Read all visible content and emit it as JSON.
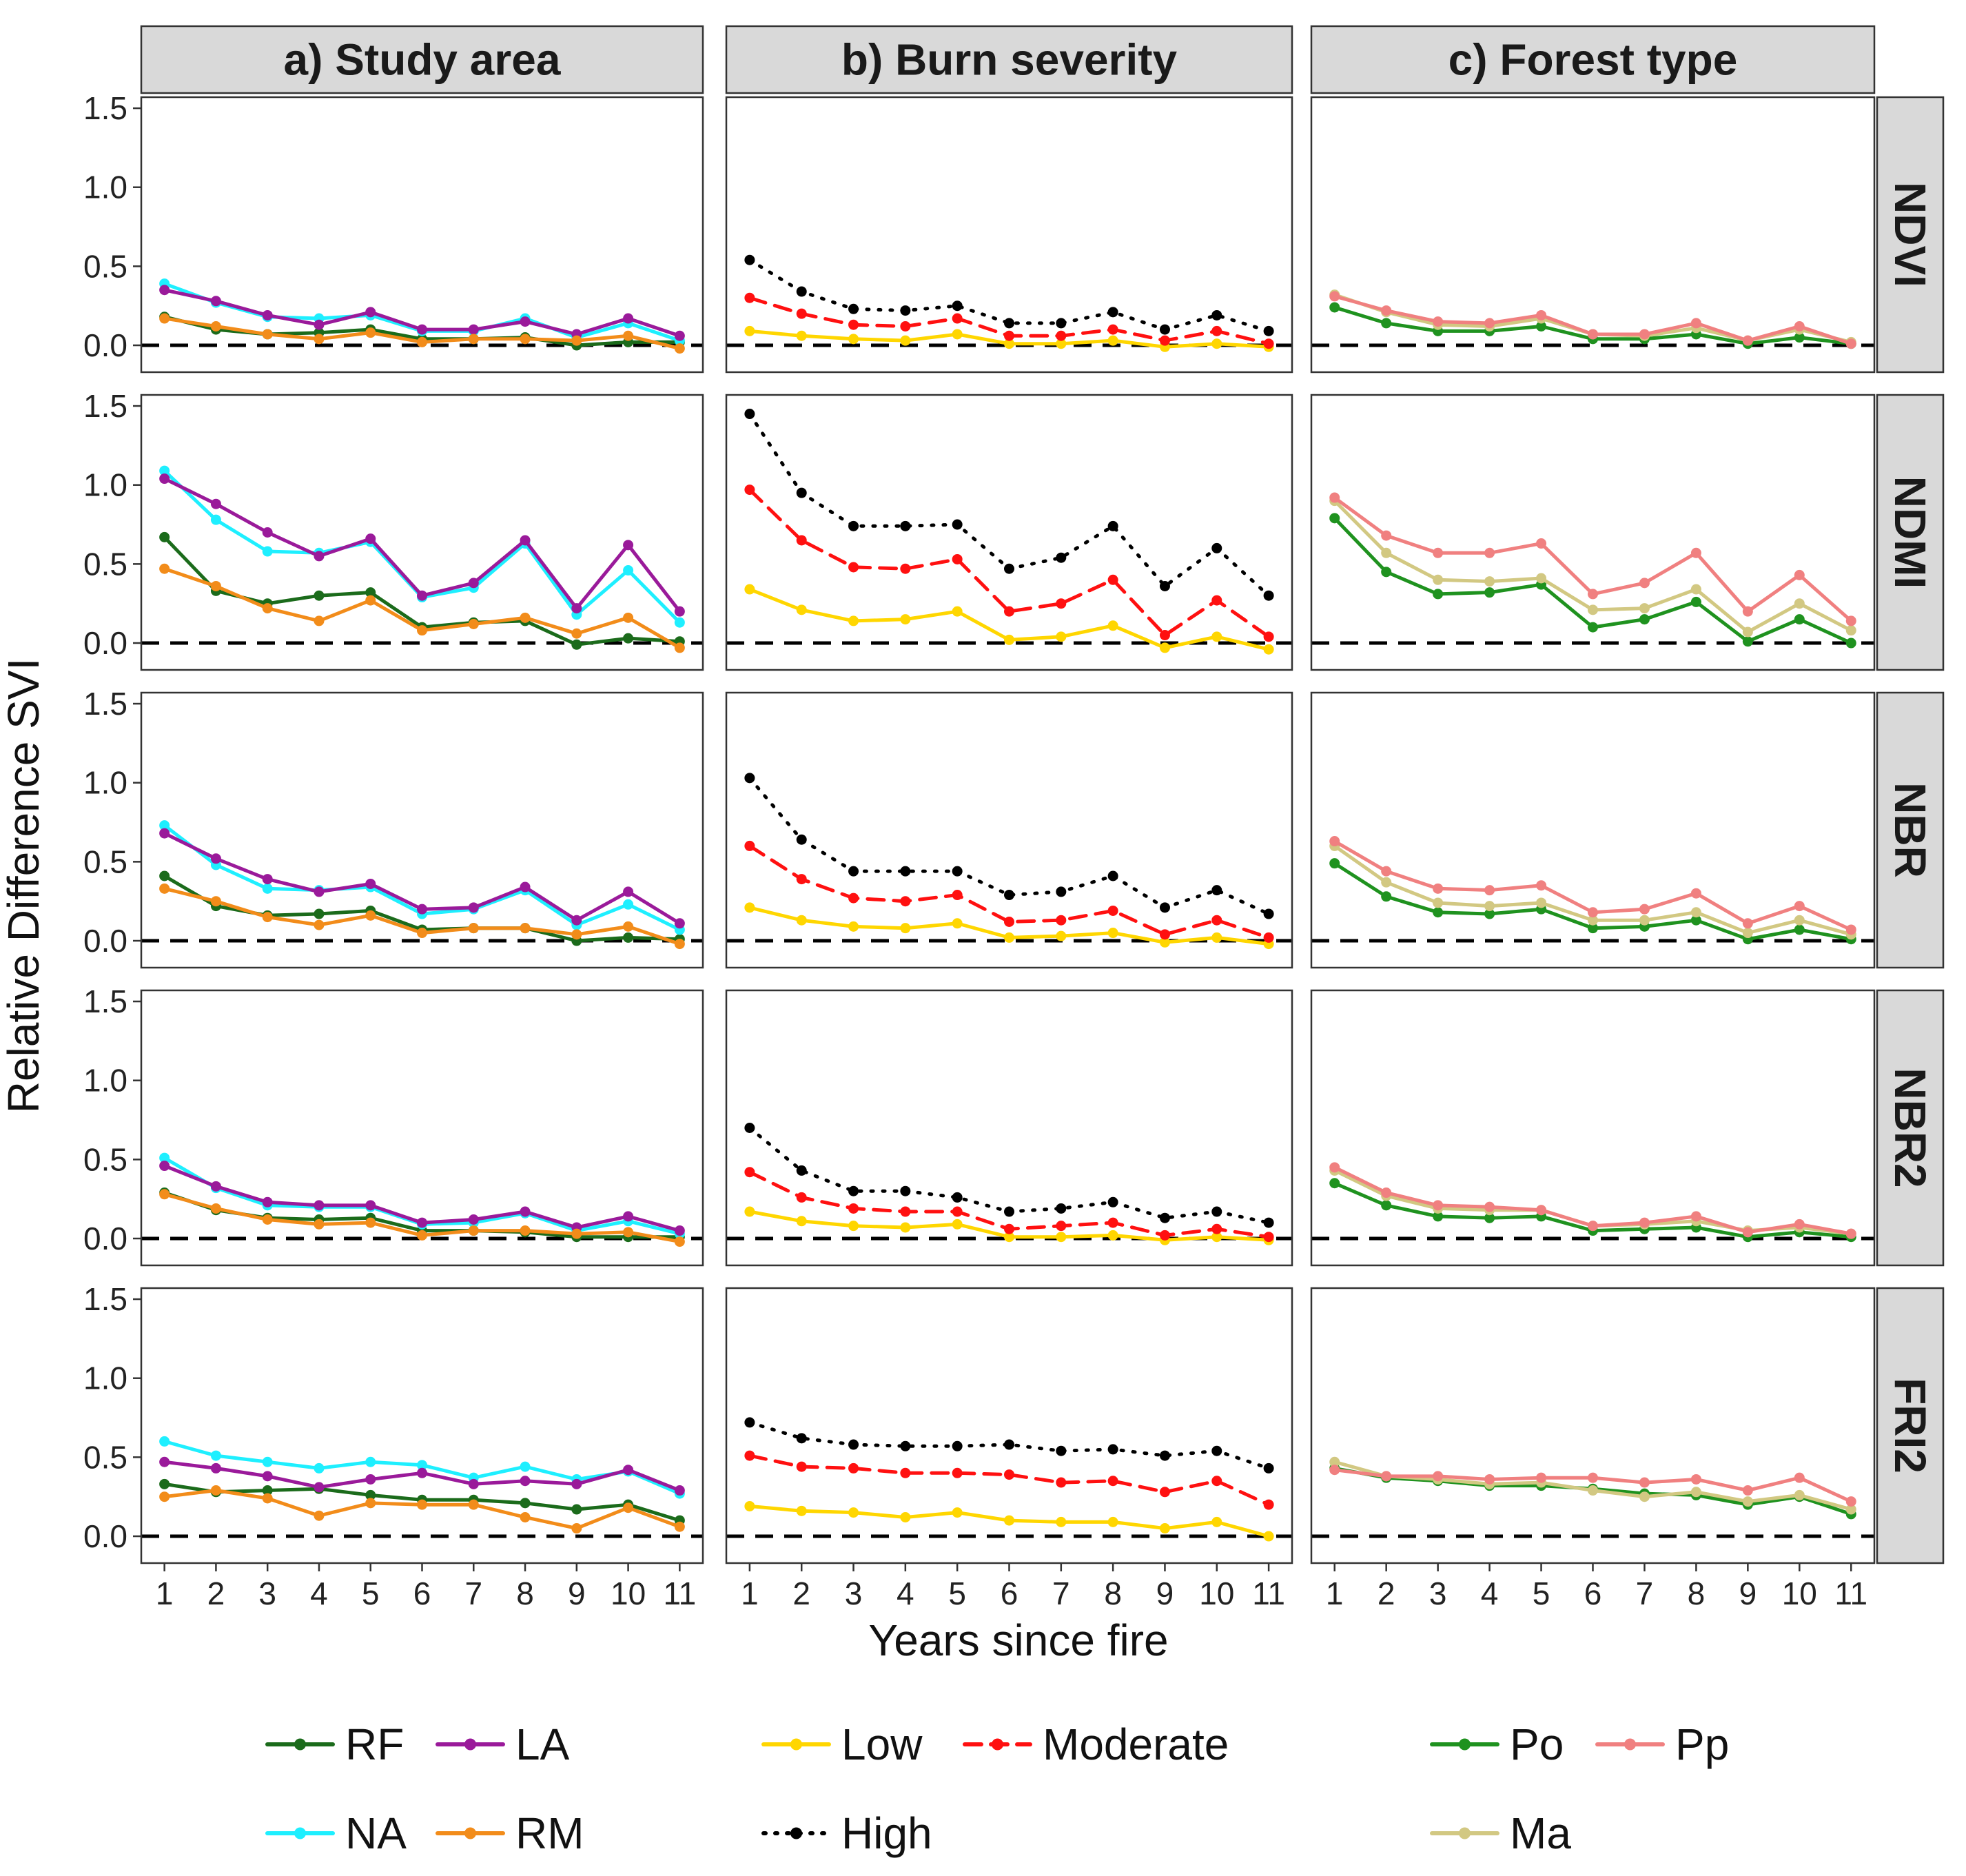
{
  "chart_data": {
    "type": "line",
    "title": "",
    "xlabel": "Years since fire",
    "ylabel": "Relative Difference SVI",
    "x": [
      1,
      2,
      3,
      4,
      5,
      6,
      7,
      8,
      9,
      10,
      11
    ],
    "x_tick_labels": [
      "1",
      "2",
      "3",
      "4",
      "5",
      "6",
      "7",
      "8",
      "9",
      "10",
      "11"
    ],
    "y_tick_labels": [
      "0.0",
      "0.5",
      "1.0",
      "1.5"
    ],
    "ylim": [
      -0.17,
      1.57
    ],
    "xlim": [
      0.55,
      11.45
    ],
    "reference_line": 0,
    "columns": [
      {
        "key": "study",
        "label": "a) Study area"
      },
      {
        "key": "severity",
        "label": "b) Burn severity"
      },
      {
        "key": "forest",
        "label": "c) Forest type"
      }
    ],
    "rows": [
      "NDVI",
      "NDMI",
      "NBR",
      "NBR2",
      "FRI2"
    ],
    "series_styles": {
      "RF": {
        "color": "#1B6B1B",
        "dash": "solid"
      },
      "LA": {
        "color": "#9A1A9A",
        "dash": "solid"
      },
      "NA": {
        "color": "#1EEFFF",
        "dash": "solid"
      },
      "RM": {
        "color": "#F28C1A",
        "dash": "solid"
      },
      "Low": {
        "color": "#FFD600",
        "dash": "solid"
      },
      "Moderate": {
        "color": "#FF1010",
        "dash": "dashed"
      },
      "High": {
        "color": "#000000",
        "dash": "dotted"
      },
      "Po": {
        "color": "#1F921F",
        "dash": "solid"
      },
      "Pp": {
        "color": "#F08080",
        "dash": "solid"
      },
      "Ma": {
        "color": "#D2C882",
        "dash": "solid"
      }
    },
    "panels": {
      "NDVI": {
        "study": {
          "RF": [
            0.18,
            0.1,
            0.07,
            0.08,
            0.1,
            0.04,
            0.04,
            0.05,
            0.0,
            0.02,
            0.02
          ],
          "NA": [
            0.39,
            0.27,
            0.18,
            0.17,
            0.19,
            0.09,
            0.09,
            0.17,
            0.05,
            0.14,
            0.03
          ],
          "LA": [
            0.35,
            0.28,
            0.19,
            0.13,
            0.21,
            0.1,
            0.1,
            0.15,
            0.07,
            0.17,
            0.06
          ],
          "RM": [
            0.17,
            0.12,
            0.07,
            0.04,
            0.08,
            0.02,
            0.04,
            0.04,
            0.03,
            0.06,
            -0.02
          ]
        },
        "severity": {
          "Low": [
            0.09,
            0.06,
            0.04,
            0.03,
            0.07,
            0.01,
            0.01,
            0.03,
            -0.01,
            0.01,
            -0.01
          ],
          "Moderate": [
            0.3,
            0.2,
            0.13,
            0.12,
            0.17,
            0.06,
            0.06,
            0.1,
            0.03,
            0.09,
            0.01
          ],
          "High": [
            0.54,
            0.34,
            0.23,
            0.22,
            0.25,
            0.14,
            0.14,
            0.21,
            0.1,
            0.19,
            0.09
          ]
        },
        "forest": {
          "Po": [
            0.24,
            0.14,
            0.09,
            0.09,
            0.12,
            0.04,
            0.04,
            0.07,
            0.01,
            0.05,
            0.01
          ],
          "Ma": [
            0.32,
            0.21,
            0.13,
            0.12,
            0.17,
            0.07,
            0.06,
            0.11,
            0.03,
            0.1,
            0.02
          ],
          "Pp": [
            0.31,
            0.22,
            0.15,
            0.14,
            0.19,
            0.07,
            0.07,
            0.14,
            0.03,
            0.12,
            0.01
          ]
        }
      },
      "NDMI": {
        "study": {
          "RF": [
            0.67,
            0.33,
            0.25,
            0.3,
            0.32,
            0.1,
            0.13,
            0.14,
            -0.01,
            0.03,
            0.01
          ],
          "NA": [
            1.09,
            0.78,
            0.58,
            0.57,
            0.64,
            0.29,
            0.35,
            0.63,
            0.18,
            0.46,
            0.13
          ],
          "LA": [
            1.04,
            0.88,
            0.7,
            0.55,
            0.66,
            0.3,
            0.38,
            0.65,
            0.22,
            0.62,
            0.2
          ],
          "RM": [
            0.47,
            0.36,
            0.22,
            0.14,
            0.27,
            0.08,
            0.12,
            0.16,
            0.06,
            0.16,
            -0.03
          ]
        },
        "severity": {
          "Low": [
            0.34,
            0.21,
            0.14,
            0.15,
            0.2,
            0.02,
            0.04,
            0.11,
            -0.03,
            0.04,
            -0.04
          ],
          "Moderate": [
            0.97,
            0.65,
            0.48,
            0.47,
            0.53,
            0.2,
            0.25,
            0.4,
            0.05,
            0.27,
            0.04
          ],
          "High": [
            1.45,
            0.95,
            0.74,
            0.74,
            0.75,
            0.47,
            0.54,
            0.74,
            0.36,
            0.6,
            0.3
          ]
        },
        "forest": {
          "Po": [
            0.79,
            0.45,
            0.31,
            0.32,
            0.37,
            0.1,
            0.15,
            0.26,
            0.01,
            0.15,
            0.0
          ],
          "Ma": [
            0.9,
            0.57,
            0.4,
            0.39,
            0.41,
            0.21,
            0.22,
            0.34,
            0.07,
            0.25,
            0.08
          ],
          "Pp": [
            0.92,
            0.68,
            0.57,
            0.57,
            0.63,
            0.31,
            0.38,
            0.57,
            0.2,
            0.43,
            0.14
          ]
        }
      },
      "NBR": {
        "study": {
          "RF": [
            0.41,
            0.22,
            0.16,
            0.17,
            0.19,
            0.07,
            0.08,
            0.08,
            0.0,
            0.02,
            0.01
          ],
          "NA": [
            0.73,
            0.48,
            0.33,
            0.32,
            0.34,
            0.17,
            0.2,
            0.32,
            0.1,
            0.23,
            0.07
          ],
          "LA": [
            0.68,
            0.52,
            0.39,
            0.31,
            0.36,
            0.2,
            0.21,
            0.34,
            0.13,
            0.31,
            0.11
          ],
          "RM": [
            0.33,
            0.25,
            0.15,
            0.1,
            0.16,
            0.05,
            0.08,
            0.08,
            0.04,
            0.09,
            -0.02
          ]
        },
        "severity": {
          "Low": [
            0.21,
            0.13,
            0.09,
            0.08,
            0.11,
            0.02,
            0.03,
            0.05,
            -0.01,
            0.02,
            -0.02
          ],
          "Moderate": [
            0.6,
            0.39,
            0.27,
            0.25,
            0.29,
            0.12,
            0.13,
            0.19,
            0.04,
            0.13,
            0.02
          ],
          "High": [
            1.03,
            0.64,
            0.44,
            0.44,
            0.44,
            0.29,
            0.31,
            0.41,
            0.21,
            0.32,
            0.17
          ]
        },
        "forest": {
          "Po": [
            0.49,
            0.28,
            0.18,
            0.17,
            0.2,
            0.08,
            0.09,
            0.13,
            0.01,
            0.07,
            0.01
          ],
          "Ma": [
            0.6,
            0.37,
            0.24,
            0.22,
            0.24,
            0.13,
            0.13,
            0.18,
            0.05,
            0.13,
            0.04
          ],
          "Pp": [
            0.63,
            0.44,
            0.33,
            0.32,
            0.35,
            0.18,
            0.2,
            0.3,
            0.11,
            0.22,
            0.07
          ]
        }
      },
      "NBR2": {
        "study": {
          "RF": [
            0.29,
            0.18,
            0.13,
            0.12,
            0.13,
            0.05,
            0.05,
            0.04,
            0.01,
            0.01,
            0.01
          ],
          "NA": [
            0.51,
            0.32,
            0.21,
            0.2,
            0.2,
            0.09,
            0.1,
            0.16,
            0.05,
            0.11,
            0.03
          ],
          "LA": [
            0.46,
            0.33,
            0.23,
            0.21,
            0.21,
            0.1,
            0.12,
            0.17,
            0.07,
            0.14,
            0.05
          ],
          "RM": [
            0.28,
            0.19,
            0.12,
            0.09,
            0.1,
            0.02,
            0.05,
            0.05,
            0.03,
            0.04,
            -0.02
          ]
        },
        "severity": {
          "Low": [
            0.17,
            0.11,
            0.08,
            0.07,
            0.09,
            0.01,
            0.01,
            0.02,
            -0.01,
            0.01,
            -0.01
          ],
          "Moderate": [
            0.42,
            0.26,
            0.19,
            0.17,
            0.17,
            0.06,
            0.08,
            0.1,
            0.02,
            0.06,
            0.01
          ],
          "High": [
            0.7,
            0.43,
            0.3,
            0.3,
            0.26,
            0.17,
            0.19,
            0.23,
            0.13,
            0.17,
            0.1
          ]
        },
        "forest": {
          "Po": [
            0.35,
            0.21,
            0.14,
            0.13,
            0.14,
            0.05,
            0.06,
            0.07,
            0.01,
            0.04,
            0.01
          ],
          "Ma": [
            0.43,
            0.27,
            0.19,
            0.18,
            0.18,
            0.08,
            0.09,
            0.11,
            0.05,
            0.07,
            0.03
          ],
          "Pp": [
            0.45,
            0.29,
            0.21,
            0.2,
            0.18,
            0.08,
            0.1,
            0.14,
            0.04,
            0.09,
            0.03
          ]
        }
      },
      "FRI2": {
        "study": {
          "RF": [
            0.33,
            0.28,
            0.29,
            0.3,
            0.26,
            0.23,
            0.23,
            0.21,
            0.17,
            0.2,
            0.1
          ],
          "NA": [
            0.6,
            0.51,
            0.47,
            0.43,
            0.47,
            0.45,
            0.37,
            0.44,
            0.36,
            0.41,
            0.27
          ],
          "LA": [
            0.47,
            0.43,
            0.38,
            0.31,
            0.36,
            0.4,
            0.33,
            0.35,
            0.33,
            0.42,
            0.29
          ],
          "RM": [
            0.25,
            0.29,
            0.24,
            0.13,
            0.21,
            0.2,
            0.2,
            0.12,
            0.05,
            0.18,
            0.06
          ]
        },
        "severity": {
          "Low": [
            0.19,
            0.16,
            0.15,
            0.12,
            0.15,
            0.1,
            0.09,
            0.09,
            0.05,
            0.09,
            0.0
          ],
          "Moderate": [
            0.51,
            0.44,
            0.43,
            0.4,
            0.4,
            0.39,
            0.34,
            0.35,
            0.28,
            0.35,
            0.2
          ],
          "High": [
            0.72,
            0.62,
            0.58,
            0.57,
            0.57,
            0.58,
            0.54,
            0.55,
            0.51,
            0.54,
            0.43
          ]
        },
        "forest": {
          "Po": [
            0.43,
            0.37,
            0.35,
            0.32,
            0.32,
            0.3,
            0.27,
            0.26,
            0.2,
            0.25,
            0.14
          ],
          "Ma": [
            0.47,
            0.38,
            0.36,
            0.33,
            0.34,
            0.29,
            0.25,
            0.28,
            0.22,
            0.26,
            0.17
          ],
          "Pp": [
            0.42,
            0.38,
            0.38,
            0.36,
            0.37,
            0.37,
            0.34,
            0.36,
            0.29,
            0.37,
            0.22
          ]
        }
      }
    },
    "legend": [
      [
        "RF",
        "LA",
        "NA",
        "RM"
      ],
      [
        "Low",
        "Moderate",
        "High"
      ],
      [
        "Po",
        "Pp",
        "Ma"
      ]
    ]
  }
}
